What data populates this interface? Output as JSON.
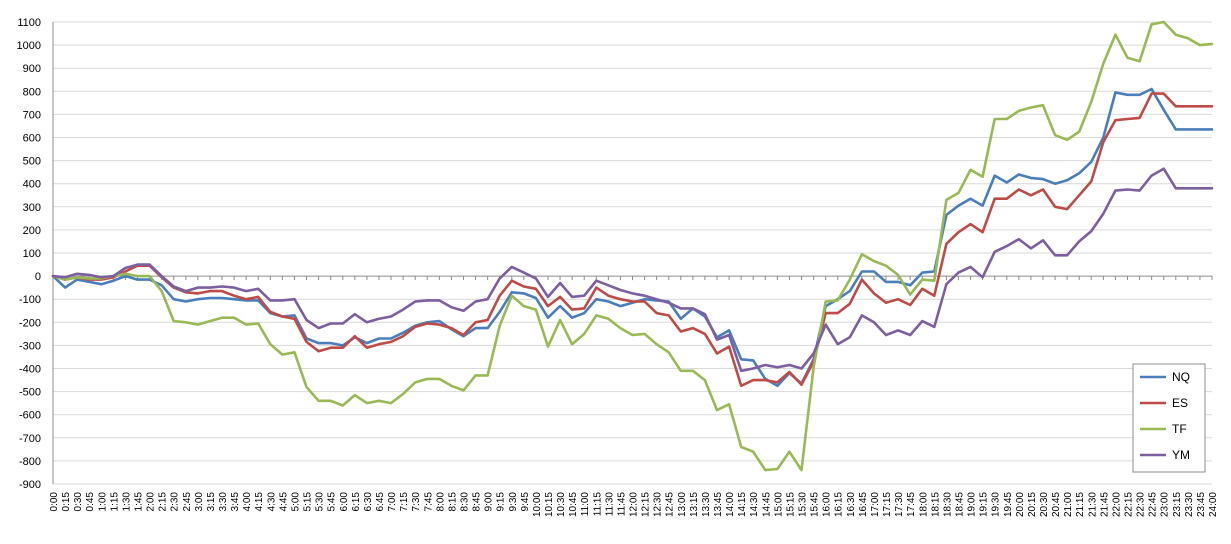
{
  "chart_data": {
    "type": "line",
    "title": "",
    "xlabel": "",
    "ylabel": "",
    "ylim": [
      -900,
      1100
    ],
    "ytick_step": 100,
    "grid": "horizontal",
    "legend_position": "right",
    "x": [
      "0:00",
      "0:15",
      "0:30",
      "0:45",
      "1:00",
      "1:15",
      "1:30",
      "1:45",
      "2:00",
      "2:15",
      "2:30",
      "2:45",
      "3:00",
      "3:15",
      "3:30",
      "3:45",
      "4:00",
      "4:15",
      "4:30",
      "4:45",
      "5:00",
      "5:15",
      "5:30",
      "5:45",
      "6:00",
      "6:15",
      "6:30",
      "6:45",
      "7:00",
      "7:15",
      "7:30",
      "7:45",
      "8:00",
      "8:15",
      "8:30",
      "8:45",
      "9:00",
      "9:15",
      "9:30",
      "9:45",
      "10:00",
      "10:15",
      "10:30",
      "10:45",
      "11:00",
      "11:15",
      "11:30",
      "11:45",
      "12:00",
      "12:15",
      "12:30",
      "12:45",
      "13:00",
      "13:15",
      "13:30",
      "13:45",
      "14:00",
      "14:15",
      "14:30",
      "14:45",
      "15:00",
      "15:15",
      "15:30",
      "15:45",
      "16:00",
      "16:15",
      "16:30",
      "16:45",
      "17:00",
      "17:15",
      "17:30",
      "17:45",
      "18:00",
      "18:15",
      "18:30",
      "18:45",
      "19:00",
      "19:15",
      "19:30",
      "19:45",
      "20:00",
      "20:15",
      "20:30",
      "20:45",
      "21:00",
      "21:15",
      "21:30",
      "21:45",
      "22:00",
      "22:15",
      "22:30",
      "22:45",
      "23:00",
      "23:15",
      "23:30",
      "23:45",
      "24:00"
    ],
    "series": [
      {
        "name": "NQ",
        "color": "#4a7ebb",
        "values": [
          0,
          -50,
          -15,
          -25,
          -35,
          -20,
          0,
          -15,
          -15,
          -40,
          -100,
          -110,
          -100,
          -95,
          -95,
          -100,
          -105,
          -105,
          -160,
          -175,
          -170,
          -270,
          -290,
          -290,
          -300,
          -265,
          -290,
          -270,
          -270,
          -245,
          -215,
          -200,
          -195,
          -230,
          -260,
          -225,
          -225,
          -155,
          -70,
          -75,
          -95,
          -180,
          -130,
          -180,
          -160,
          -100,
          -110,
          -130,
          -115,
          -100,
          -105,
          -110,
          -185,
          -140,
          -175,
          -265,
          -235,
          -360,
          -365,
          -445,
          -475,
          -420,
          -465,
          -360,
          -130,
          -100,
          -65,
          20,
          20,
          -25,
          -25,
          -40,
          15,
          20,
          265,
          305,
          335,
          305,
          435,
          405,
          440,
          425,
          420,
          400,
          415,
          445,
          495,
          600,
          795,
          785,
          785,
          810,
          720,
          635,
          635,
          635,
          635
        ]
      },
      {
        "name": "ES",
        "color": "#be4b48",
        "values": [
          0,
          -15,
          -5,
          -15,
          -15,
          -5,
          20,
          45,
          45,
          -5,
          -50,
          -70,
          -75,
          -65,
          -65,
          -85,
          -100,
          -90,
          -155,
          -175,
          -185,
          -285,
          -325,
          -310,
          -310,
          -260,
          -310,
          -295,
          -285,
          -260,
          -220,
          -205,
          -210,
          -225,
          -255,
          -200,
          -190,
          -85,
          -20,
          -45,
          -55,
          -130,
          -90,
          -145,
          -140,
          -50,
          -85,
          -100,
          -110,
          -110,
          -160,
          -170,
          -240,
          -225,
          -250,
          -335,
          -305,
          -475,
          -450,
          -450,
          -460,
          -415,
          -470,
          -370,
          -160,
          -160,
          -120,
          -15,
          -75,
          -115,
          -100,
          -125,
          -55,
          -85,
          140,
          190,
          225,
          190,
          335,
          335,
          375,
          350,
          375,
          300,
          290,
          350,
          410,
          580,
          675,
          680,
          685,
          790,
          790,
          735,
          735,
          735,
          735
        ]
      },
      {
        "name": "TF",
        "color": "#98b954",
        "values": [
          0,
          -15,
          -5,
          -10,
          -10,
          0,
          10,
          0,
          0,
          -65,
          -195,
          -200,
          -210,
          -195,
          -180,
          -180,
          -210,
          -205,
          -295,
          -340,
          -330,
          -480,
          -540,
          -540,
          -560,
          -515,
          -550,
          -540,
          -550,
          -510,
          -460,
          -445,
          -445,
          -475,
          -495,
          -430,
          -430,
          -215,
          -85,
          -130,
          -145,
          -305,
          -190,
          -295,
          -250,
          -170,
          -185,
          -225,
          -255,
          -250,
          -295,
          -330,
          -410,
          -410,
          -450,
          -580,
          -555,
          -740,
          -760,
          -840,
          -835,
          -760,
          -840,
          -395,
          -110,
          -105,
          -15,
          95,
          65,
          45,
          5,
          -80,
          -15,
          -20,
          330,
          360,
          460,
          430,
          680,
          680,
          715,
          730,
          740,
          610,
          590,
          625,
          755,
          920,
          1045,
          945,
          930,
          1090,
          1100,
          1045,
          1030,
          1000,
          1005
        ]
      },
      {
        "name": "YM",
        "color": "#7d5fa0",
        "values": [
          0,
          -5,
          10,
          5,
          -5,
          0,
          35,
          50,
          50,
          0,
          -45,
          -65,
          -50,
          -50,
          -45,
          -50,
          -65,
          -55,
          -105,
          -105,
          -100,
          -190,
          -225,
          -205,
          -205,
          -165,
          -200,
          -185,
          -175,
          -145,
          -110,
          -105,
          -105,
          -135,
          -150,
          -110,
          -100,
          -10,
          40,
          15,
          -10,
          -90,
          -30,
          -90,
          -85,
          -20,
          -40,
          -60,
          -75,
          -85,
          -100,
          -115,
          -140,
          -140,
          -165,
          -275,
          -255,
          -410,
          -400,
          -385,
          -395,
          -385,
          -400,
          -335,
          -210,
          -295,
          -265,
          -170,
          -200,
          -255,
          -235,
          -255,
          -195,
          -220,
          -35,
          15,
          40,
          -5,
          105,
          130,
          160,
          120,
          155,
          90,
          90,
          150,
          195,
          270,
          370,
          375,
          370,
          435,
          465,
          380,
          380,
          380,
          380
        ]
      }
    ]
  }
}
